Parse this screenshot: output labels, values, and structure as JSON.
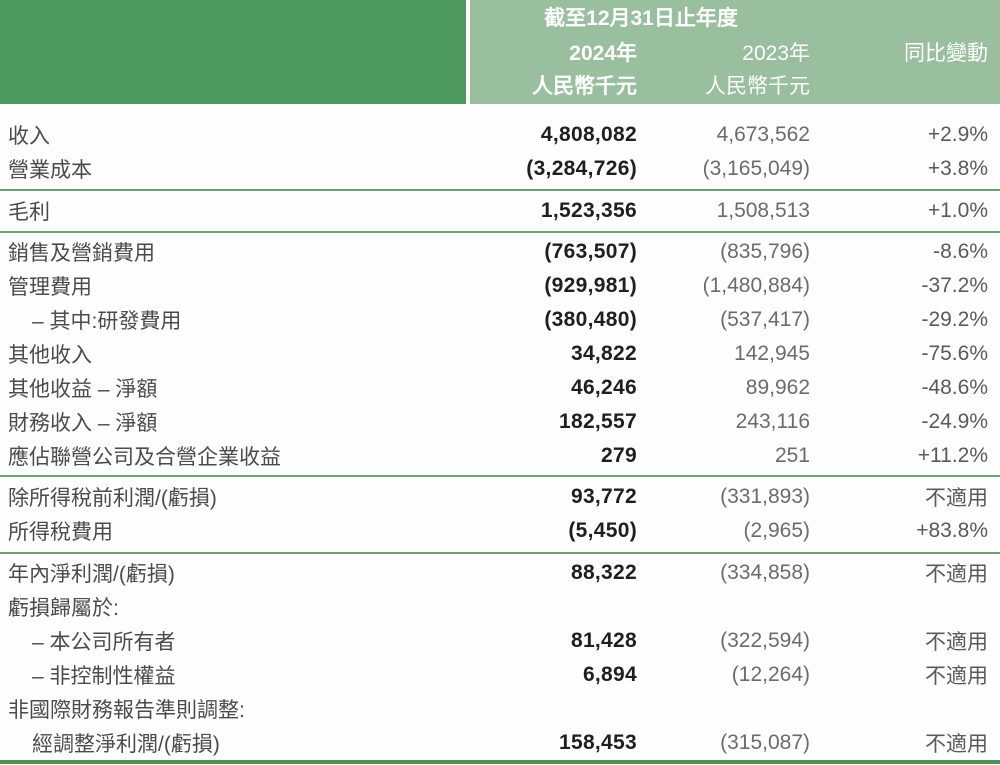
{
  "colors": {
    "header_dark_green": "#4f9a60",
    "header_light_green": "#9abf9e",
    "header_text": "#ffffff",
    "label_text": "#4b4b4b",
    "value_2024_text": "#1f1f1f",
    "value_2023_text": "#6b6b6b",
    "change_text": "#5a5a5a",
    "divider_green": "#6fa07a",
    "bottom_border_green": "#4f8f5a",
    "background": "#fefefe"
  },
  "header": {
    "period": "截至12月31日止年度",
    "col_2024": {
      "year": "2024年",
      "unit": "人民幣千元"
    },
    "col_2023": {
      "year": "2023年",
      "unit": "人民幣千元"
    },
    "col_change": "同比變動"
  },
  "table": {
    "sections": [
      {
        "rows": [
          {
            "label": "收入",
            "v2024": "4,808,082",
            "v2023": "4,673,562",
            "change": "+2.9%",
            "level": 0
          },
          {
            "label": "營業成本",
            "v2024": "(3,284,726)",
            "v2023": "(3,165,049)",
            "change": "+3.8%",
            "level": 0
          }
        ]
      },
      {
        "rows": [
          {
            "label": "毛利",
            "v2024": "1,523,356",
            "v2023": "1,508,513",
            "change": "+1.0%",
            "level": 0
          }
        ]
      },
      {
        "rows": [
          {
            "label": "銷售及營銷費用",
            "v2024": "(763,507)",
            "v2023": "(835,796)",
            "change": "-8.6%",
            "level": 0
          },
          {
            "label": "管理費用",
            "v2024": "(929,981)",
            "v2023": "(1,480,884)",
            "change": "-37.2%",
            "level": 0
          },
          {
            "label": "– 其中:研發費用",
            "v2024": "(380,480)",
            "v2023": "(537,417)",
            "change": "-29.2%",
            "level": 1
          },
          {
            "label": "其他收入",
            "v2024": "34,822",
            "v2023": "142,945",
            "change": "-75.6%",
            "level": 0
          },
          {
            "label": "其他收益 – 淨額",
            "v2024": "46,246",
            "v2023": "89,962",
            "change": "-48.6%",
            "level": 0
          },
          {
            "label": "財務收入 – 淨額",
            "v2024": "182,557",
            "v2023": "243,116",
            "change": "-24.9%",
            "level": 0
          },
          {
            "label": "應佔聯營公司及合營企業收益",
            "v2024": "279",
            "v2023": "251",
            "change": "+11.2%",
            "level": 0
          }
        ]
      },
      {
        "rows": [
          {
            "label": "除所得稅前利潤/(虧損)",
            "v2024": "93,772",
            "v2023": "(331,893)",
            "change": "不適用",
            "level": 0
          },
          {
            "label": "所得稅費用",
            "v2024": "(5,450)",
            "v2023": "(2,965)",
            "change": "+83.8%",
            "level": 0
          }
        ]
      },
      {
        "rows": [
          {
            "label": "年內淨利潤/(虧損)",
            "v2024": "88,322",
            "v2023": "(334,858)",
            "change": "不適用",
            "level": 0
          },
          {
            "label": "虧損歸屬於:",
            "v2024": "",
            "v2023": "",
            "change": "",
            "level": 0
          },
          {
            "label": "– 本公司所有者",
            "v2024": "81,428",
            "v2023": "(322,594)",
            "change": "不適用",
            "level": 1
          },
          {
            "label": "– 非控制性權益",
            "v2024": "6,894",
            "v2023": "(12,264)",
            "change": "不適用",
            "level": 1
          },
          {
            "label": "非國際財務報告準則調整:",
            "v2024": "",
            "v2023": "",
            "change": "",
            "level": 0
          },
          {
            "label": "經調整淨利潤/(虧損)",
            "v2024": "158,453",
            "v2023": "(315,087)",
            "change": "不適用",
            "level": 1
          }
        ]
      }
    ]
  }
}
